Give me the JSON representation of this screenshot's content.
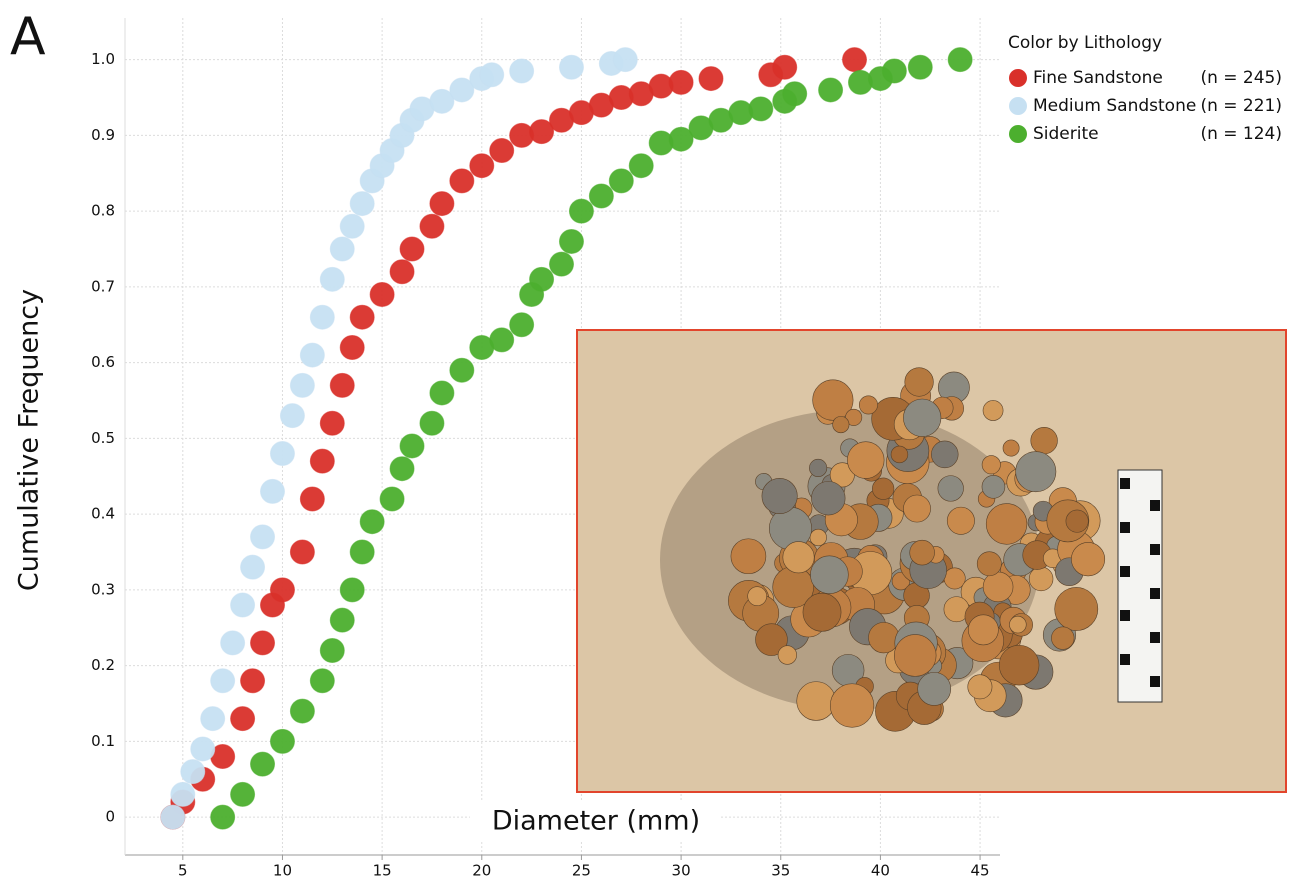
{
  "chart_data": {
    "type": "scatter",
    "panel_label": "A",
    "x_label": "Diameter (mm)",
    "y_label": "Cumulative Frequency",
    "legend_title": "Color by Lithology",
    "legend_position": "top-right",
    "grid": true,
    "xlim": [
      2.1,
      46
    ],
    "ylim": [
      -0.05,
      1.055
    ],
    "xticks": [
      5,
      10,
      15,
      20,
      25,
      30,
      35,
      40,
      45
    ],
    "yticks": [
      0,
      0.1,
      0.2,
      0.3,
      0.4,
      0.5,
      0.6,
      0.7,
      0.8,
      0.9,
      {
        "value": 1,
        "label": "1.0"
      }
    ],
    "series": [
      {
        "name": "Fine Sandstone",
        "count_label": "(n = 245)",
        "color": "#d9302a",
        "x": [
          4.5,
          5,
          6,
          7,
          8,
          8.5,
          9,
          9.5,
          10,
          11,
          11.5,
          12,
          12.5,
          13,
          13.5,
          14,
          15,
          16,
          16.5,
          17.5,
          18,
          19,
          20,
          21,
          22,
          23,
          24,
          25,
          26,
          27,
          28,
          29,
          30,
          31.5,
          34.5,
          35.2,
          38.7
        ],
        "values": [
          0,
          0.02,
          0.05,
          0.08,
          0.13,
          0.18,
          0.23,
          0.28,
          0.3,
          0.35,
          0.42,
          0.47,
          0.52,
          0.57,
          0.62,
          0.66,
          0.69,
          0.72,
          0.75,
          0.78,
          0.81,
          0.84,
          0.86,
          0.88,
          0.9,
          0.905,
          0.92,
          0.93,
          0.94,
          0.95,
          0.955,
          0.965,
          0.97,
          0.975,
          0.98,
          0.99,
          1.0
        ]
      },
      {
        "name": "Medium Sandstone",
        "count_label": "(n = 221)",
        "color": "#c6e0f2",
        "x": [
          4.5,
          5,
          5.5,
          6,
          6.5,
          7,
          7.5,
          8,
          8.5,
          9,
          9.5,
          10,
          10.5,
          11,
          11.5,
          12,
          12.5,
          13,
          13.5,
          14,
          14.5,
          15,
          15.5,
          16,
          16.5,
          17,
          18,
          19,
          20,
          20.5,
          22,
          24.5,
          26.5,
          27.2
        ],
        "values": [
          0,
          0.03,
          0.06,
          0.09,
          0.13,
          0.18,
          0.23,
          0.28,
          0.33,
          0.37,
          0.43,
          0.48,
          0.53,
          0.57,
          0.61,
          0.66,
          0.71,
          0.75,
          0.78,
          0.81,
          0.84,
          0.86,
          0.88,
          0.9,
          0.92,
          0.935,
          0.945,
          0.96,
          0.975,
          0.98,
          0.985,
          0.99,
          0.995,
          1.0
        ]
      },
      {
        "name": "Siderite",
        "count_label": "(n = 124)",
        "color": "#4caf2e",
        "x": [
          7,
          8,
          9,
          10,
          11,
          12,
          12.5,
          13,
          13.5,
          14,
          14.5,
          15.5,
          16,
          16.5,
          17.5,
          18,
          19,
          20,
          21,
          22,
          22.5,
          23,
          24,
          24.5,
          25,
          26,
          27,
          28,
          29,
          30,
          31,
          32,
          33,
          34,
          35.2,
          35.7,
          37.5,
          39,
          40,
          40.7,
          42,
          44
        ],
        "values": [
          0,
          0.03,
          0.07,
          0.1,
          0.14,
          0.18,
          0.22,
          0.26,
          0.3,
          0.35,
          0.39,
          0.42,
          0.46,
          0.49,
          0.52,
          0.56,
          0.59,
          0.62,
          0.63,
          0.65,
          0.69,
          0.71,
          0.73,
          0.76,
          0.8,
          0.82,
          0.84,
          0.86,
          0.89,
          0.895,
          0.91,
          0.92,
          0.93,
          0.935,
          0.945,
          0.955,
          0.96,
          0.97,
          0.975,
          0.985,
          0.99,
          1.0
        ]
      }
    ]
  }
}
